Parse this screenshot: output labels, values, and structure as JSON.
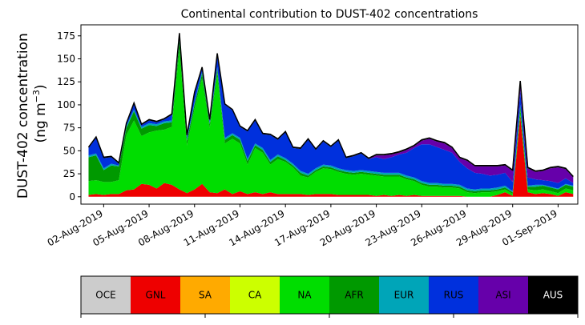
{
  "chart_data": {
    "type": "area",
    "title": "Continental contribution to DUST-402 concentrations",
    "ylabel_line1": "DUST-402 concentration",
    "ylabel_line2_prefix": "(ng m",
    "ylabel_sup": "−3",
    "ylabel_line2_suffix": ")",
    "xlabel": "",
    "ylim": [
      -8,
      187
    ],
    "xlim_days": [
      -0.5,
      32.3
    ],
    "x_origin_date": "2019-08-01",
    "yticks": [
      0,
      25,
      50,
      75,
      100,
      125,
      150,
      175
    ],
    "xticks": [
      {
        "day": 1,
        "label": "02-Aug-2019"
      },
      {
        "day": 4,
        "label": "05-Aug-2019"
      },
      {
        "day": 7,
        "label": "08-Aug-2019"
      },
      {
        "day": 10,
        "label": "11-Aug-2019"
      },
      {
        "day": 13,
        "label": "14-Aug-2019"
      },
      {
        "day": 16,
        "label": "17-Aug-2019"
      },
      {
        "day": 19,
        "label": "20-Aug-2019"
      },
      {
        "day": 22,
        "label": "23-Aug-2019"
      },
      {
        "day": 25,
        "label": "26-Aug-2019"
      },
      {
        "day": 28,
        "label": "29-Aug-2019"
      },
      {
        "day": 31,
        "label": "01-Sep-2019"
      }
    ],
    "x": [
      0,
      0.5,
      1,
      1.5,
      2,
      2.5,
      3,
      3.5,
      4,
      4.5,
      5,
      5.5,
      6,
      6.5,
      7,
      7.5,
      8,
      8.5,
      9,
      9.5,
      10,
      10.5,
      11,
      11.5,
      12,
      12.5,
      13,
      13.5,
      14,
      14.5,
      15,
      15.5,
      16,
      16.5,
      17,
      17.5,
      18,
      18.5,
      19,
      19.5,
      20,
      20.5,
      21,
      21.5,
      22,
      22.5,
      23,
      23.5,
      24,
      24.5,
      25,
      25.5,
      26,
      26.5,
      27,
      27.5,
      28,
      28.5,
      29,
      29.5,
      30,
      30.5,
      31,
      31.5,
      32
    ],
    "series": [
      {
        "name": "GNL",
        "color": "#ee0000",
        "values": [
          2,
          3,
          2,
          3,
          3,
          7,
          8,
          14,
          13,
          9,
          15,
          13,
          8,
          4,
          8,
          14,
          5,
          4,
          8,
          3,
          6,
          3,
          5,
          3,
          5,
          3,
          3,
          3,
          3,
          2,
          3,
          3,
          3,
          2,
          2,
          2,
          2,
          2,
          1,
          2,
          1,
          2,
          1,
          2,
          1,
          1,
          1,
          1,
          1,
          1,
          0,
          0,
          0,
          0,
          2,
          5,
          1,
          88,
          5,
          3,
          4,
          3,
          1,
          5,
          3
        ]
      },
      {
        "name": "SA",
        "color": "#ffaa00",
        "values": [
          0,
          0,
          0,
          0,
          0,
          0,
          0,
          0,
          0,
          0,
          0,
          0,
          0,
          0,
          0,
          0,
          0,
          0,
          0,
          0,
          0,
          0,
          0,
          0,
          0,
          0,
          0,
          0,
          0,
          0,
          0,
          0,
          0,
          0,
          0,
          0,
          0,
          0,
          0,
          0,
          0,
          0,
          0,
          0,
          0,
          0,
          0,
          0,
          0,
          0,
          0,
          0,
          0,
          0,
          0,
          0,
          0,
          0,
          0,
          0,
          0,
          0,
          0,
          0,
          0
        ]
      },
      {
        "name": "CA",
        "color": "#ccff00",
        "values": [
          0,
          0,
          0,
          0,
          0,
          0,
          0,
          0,
          0,
          0,
          0,
          0,
          0,
          0,
          0,
          0,
          0,
          0,
          0,
          0,
          0,
          0,
          0,
          0,
          0,
          0,
          0,
          0,
          0,
          0,
          0,
          0,
          0,
          0,
          0,
          0,
          0,
          0,
          0,
          0,
          0,
          0,
          0,
          0,
          0,
          0,
          0,
          0,
          0,
          0,
          0,
          0,
          0,
          0,
          0,
          0,
          0,
          0,
          0,
          0,
          0,
          0,
          0,
          0,
          0
        ]
      },
      {
        "name": "NA",
        "color": "#00dd00",
        "values": [
          15,
          15,
          14,
          13,
          15,
          60,
          75,
          52,
          57,
          63,
          58,
          63,
          152,
          52,
          88,
          115,
          70,
          130,
          50,
          60,
          52,
          32,
          48,
          45,
          30,
          38,
          35,
          29,
          20,
          19,
          24,
          28,
          27,
          25,
          23,
          22,
          23,
          22,
          22,
          20,
          21,
          20,
          18,
          15,
          12,
          10,
          10,
          9,
          9,
          8,
          5,
          4,
          5,
          5,
          4,
          3,
          2,
          5,
          3,
          4,
          4,
          3,
          3,
          4,
          4
        ]
      },
      {
        "name": "AFR",
        "color": "#009900",
        "values": [
          26,
          27,
          13,
          18,
          15,
          8,
          10,
          8,
          8,
          5,
          7,
          5,
          10,
          5,
          5,
          5,
          4,
          5,
          4,
          4,
          4,
          4,
          3,
          3,
          3,
          3,
          2,
          2,
          3,
          2,
          2,
          2,
          2,
          2,
          2,
          2,
          2,
          2,
          2,
          2,
          2,
          2,
          2,
          2,
          2,
          2,
          2,
          2,
          2,
          2,
          2,
          2,
          2,
          2,
          2,
          2,
          2,
          5,
          3,
          4,
          4,
          4,
          4,
          4,
          4
        ]
      },
      {
        "name": "EUR",
        "color": "#00a5b8",
        "values": [
          2,
          2,
          2,
          2,
          1,
          2,
          2,
          2,
          2,
          2,
          2,
          2,
          3,
          2,
          2,
          2,
          2,
          2,
          2,
          2,
          2,
          2,
          2,
          2,
          2,
          2,
          2,
          2,
          2,
          2,
          2,
          2,
          2,
          2,
          2,
          2,
          2,
          2,
          2,
          2,
          2,
          2,
          2,
          2,
          2,
          2,
          2,
          2,
          2,
          2,
          2,
          2,
          2,
          2,
          2,
          2,
          1,
          2,
          1,
          2,
          1,
          1,
          1,
          1,
          1
        ]
      },
      {
        "name": "RUS",
        "color": "#0030dd",
        "values": [
          8,
          17,
          11,
          7,
          2,
          2,
          6,
          2,
          3,
          2,
          2,
          6,
          4,
          3,
          10,
          4,
          2,
          14,
          36,
          25,
          12,
          30,
          25,
          15,
          27,
          16,
          28,
          17,
          24,
          37,
          20,
          25,
          20,
          30,
          13,
          16,
          18,
          13,
          16,
          15,
          17,
          20,
          25,
          32,
          40,
          42,
          39,
          37,
          34,
          25,
          22,
          18,
          16,
          14,
          14,
          14,
          10,
          15,
          9,
          6,
          5,
          6,
          6,
          6,
          3
        ]
      },
      {
        "name": "ASI",
        "color": "#6600aa",
        "values": [
          0,
          0,
          0,
          0,
          0,
          0,
          0,
          0,
          0,
          0,
          0,
          0,
          0,
          0,
          0,
          0,
          0,
          0,
          0,
          0,
          0,
          0,
          0,
          0,
          0,
          0,
          0,
          0,
          0,
          0,
          0,
          0,
          0,
          0,
          0,
          0,
          0,
          0,
          2,
          4,
          3,
          2,
          3,
          2,
          4,
          6,
          6,
          7,
          5,
          4,
          8,
          7,
          8,
          10,
          9,
          8,
          12,
          10,
          10,
          8,
          10,
          14,
          17,
          10,
          6
        ]
      },
      {
        "name": "AUS",
        "color": "#000000",
        "values": [
          1,
          1,
          1,
          1,
          1,
          1,
          1,
          1,
          1,
          1,
          1,
          1,
          1,
          1,
          1,
          1,
          1,
          1,
          1,
          1,
          1,
          1,
          1,
          1,
          1,
          1,
          1,
          1,
          1,
          1,
          1,
          1,
          1,
          1,
          1,
          1,
          1,
          1,
          1,
          1,
          1,
          1,
          1,
          1,
          1,
          1,
          1,
          1,
          1,
          1,
          1,
          1,
          1,
          1,
          1,
          1,
          1,
          1,
          1,
          1,
          1,
          1,
          1,
          1,
          1
        ]
      }
    ],
    "legend": [
      {
        "name": "OCE",
        "color": "#cccccc"
      },
      {
        "name": "GNL",
        "color": "#ee0000"
      },
      {
        "name": "SA",
        "color": "#ffaa00"
      },
      {
        "name": "CA",
        "color": "#ccff00"
      },
      {
        "name": "NA",
        "color": "#00dd00"
      },
      {
        "name": "AFR",
        "color": "#009900"
      },
      {
        "name": "EUR",
        "color": "#00a5b8"
      },
      {
        "name": "RUS",
        "color": "#0030dd"
      },
      {
        "name": "ASI",
        "color": "#6600aa"
      },
      {
        "name": "AUS",
        "color": "#000000",
        "text_color": "#ffffff"
      }
    ]
  }
}
